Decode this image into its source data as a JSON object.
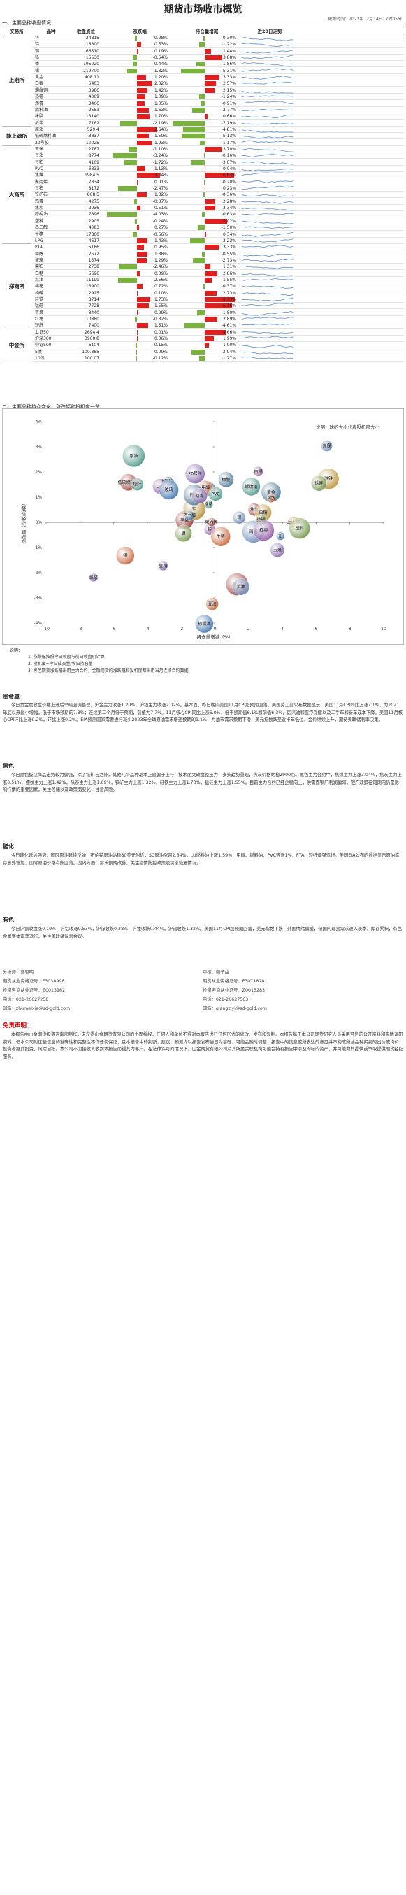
{
  "header": {
    "title": "期货市场收市概览",
    "update": "更新时间：2022年12月14日17时05分"
  },
  "section1": "一、主要品种收盘情况",
  "table_head": {
    "exchange": "交易所",
    "name": "品种",
    "price": "收盘点位",
    "pct": "涨跌幅",
    "pos": "持仓量增减",
    "trend": "近20日走势"
  },
  "colors": {
    "up": "#e0201f",
    "down": "#7ab23e"
  },
  "groups": [
    {
      "name": "上期所",
      "rows": [
        {
          "name": "锌",
          "price": "24815",
          "pct": -0.28,
          "pct_t": "-0.28%",
          "pos": -0.3,
          "pos_t": "-0.30%"
        },
        {
          "name": "铝",
          "price": "18800",
          "pct": 0.53,
          "pct_t": "0.53%",
          "pos": -1.22,
          "pos_t": "-1.22%"
        },
        {
          "name": "铜",
          "price": "66510",
          "pct": 0.19,
          "pct_t": "0.19%",
          "pos": 1.44,
          "pos_t": "1.44%"
        },
        {
          "name": "铅",
          "price": "15530",
          "pct": -0.54,
          "pct_t": "-0.54%",
          "pos": 3.88,
          "pos_t": "3.88%"
        },
        {
          "name": "镍",
          "price": "195020",
          "pct": -0.44,
          "pct_t": "-0.44%",
          "pos": -1.86,
          "pos_t": "-1.86%"
        },
        {
          "name": "锡",
          "price": "219700",
          "pct": -1.32,
          "pct_t": "-1.32%",
          "pos": -5.31,
          "pos_t": "-5.31%"
        },
        {
          "name": "黄金",
          "price": "408.11",
          "pct": 1.2,
          "pct_t": "1.20%",
          "pos": 3.33,
          "pos_t": "3.33%"
        },
        {
          "name": "白银",
          "price": "5403",
          "pct": 2.02,
          "pct_t": "2.02%",
          "pos": 2.57,
          "pos_t": "2.57%"
        },
        {
          "name": "螺纹钢",
          "price": "3986",
          "pct": 1.42,
          "pct_t": "1.42%",
          "pos": 2.15,
          "pos_t": "2.15%"
        },
        {
          "name": "热卷",
          "price": "4069",
          "pct": 1.09,
          "pct_t": "1.09%",
          "pos": -1.24,
          "pos_t": "-1.24%"
        },
        {
          "name": "沥青",
          "price": "3466",
          "pct": 1.05,
          "pct_t": "1.05%",
          "pos": -0.91,
          "pos_t": "-0.91%"
        },
        {
          "name": "燃料油",
          "price": "2553",
          "pct": 1.63,
          "pct_t": "1.63%",
          "pos": -2.77,
          "pos_t": "-2.77%"
        },
        {
          "name": "橡胶",
          "price": "13140",
          "pct": 1.7,
          "pct_t": "1.70%",
          "pos": 0.66,
          "pos_t": "0.66%"
        },
        {
          "name": "纸浆",
          "price": "7162",
          "pct": -2.19,
          "pct_t": "-2.19%",
          "pos": -7.19,
          "pos_t": "-7.19%"
        }
      ]
    },
    {
      "name": "能上源所",
      "rows": [
        {
          "name": "原油",
          "price": "529.4",
          "pct": 2.64,
          "pct_t": "2.64%",
          "pos": -4.81,
          "pos_t": "-4.81%"
        },
        {
          "name": "低硫燃料油",
          "price": "3837",
          "pct": 1.59,
          "pct_t": "1.59%",
          "pos": -5.13,
          "pos_t": "-5.13%"
        },
        {
          "name": "20号胶",
          "price": "10025",
          "pct": 1.93,
          "pct_t": "1.93%",
          "pos": -1.17,
          "pos_t": "-1.17%"
        }
      ]
    },
    {
      "name": "大商所",
      "rows": [
        {
          "name": "玉米",
          "price": "2787",
          "pct": -1.1,
          "pct_t": "-1.10%",
          "pos": 3.7,
          "pos_t": "3.70%"
        },
        {
          "name": "豆油",
          "price": "8774",
          "pct": -3.24,
          "pct_t": "-3.24%",
          "pos": -0.16,
          "pos_t": "-0.16%"
        },
        {
          "name": "豆粕",
          "price": "4109",
          "pct": -1.72,
          "pct_t": "-1.72%",
          "pos": -3.07,
          "pos_t": "-3.07%"
        },
        {
          "name": "PVC",
          "price": "6333",
          "pct": 1.13,
          "pct_t": "1.13%",
          "pos": 0.04,
          "pos_t": "0.04%"
        },
        {
          "name": "焦煤",
          "price": "1984.5",
          "pct": 3.04,
          "pct_t": "3.04%",
          "pos": 6.63,
          "pos_t": "6.63%"
        },
        {
          "name": "聚丙烯",
          "price": "7834",
          "pct": 0.01,
          "pct_t": "0.01%",
          "pos": -0.2,
          "pos_t": "-0.20%"
        },
        {
          "name": "豆粕",
          "price": "8172",
          "pct": -2.47,
          "pct_t": "-2.47%",
          "pos": 0.23,
          "pos_t": "0.23%"
        },
        {
          "name": "铁矿石",
          "price": "808.5",
          "pct": 1.32,
          "pct_t": "1.32%",
          "pos": -0.36,
          "pos_t": "-0.36%"
        },
        {
          "name": "鸡蛋",
          "price": "4275",
          "pct": -0.37,
          "pct_t": "-0.37%",
          "pos": 2.28,
          "pos_t": "2.28%"
        },
        {
          "name": "焦炭",
          "price": "2936",
          "pct": 0.51,
          "pct_t": "0.51%",
          "pos": 2.34,
          "pos_t": "2.34%"
        },
        {
          "name": "棕榈油",
          "price": "7896",
          "pct": -4.03,
          "pct_t": "-4.03%",
          "pos": -0.63,
          "pos_t": "-0.63%"
        },
        {
          "name": "塑料",
          "price": "2905",
          "pct": -0.24,
          "pct_t": "-0.24%",
          "pos": 5.02,
          "pos_t": "5.02%"
        },
        {
          "name": "乙二醇",
          "price": "4083",
          "pct": 0.27,
          "pct_t": "0.27%",
          "pos": -1.5,
          "pos_t": "-1.50%"
        },
        {
          "name": "生猪",
          "price": "17860",
          "pct": -0.56,
          "pct_t": "-0.56%",
          "pos": 0.34,
          "pos_t": "0.34%"
        },
        {
          "name": "LPG",
          "price": "4617",
          "pct": 1.43,
          "pct_t": "1.43%",
          "pos": -3.23,
          "pos_t": "-3.23%"
        }
      ]
    },
    {
      "name": "郑商所",
      "rows": [
        {
          "name": "PTA",
          "price": "5186",
          "pct": 0.95,
          "pct_t": "0.95%",
          "pos": 3.33,
          "pos_t": "3.33%"
        },
        {
          "name": "甲醇",
          "price": "2572",
          "pct": 1.38,
          "pct_t": "1.38%",
          "pos": -0.55,
          "pos_t": "-0.55%"
        },
        {
          "name": "玻璃",
          "price": "1574",
          "pct": 1.29,
          "pct_t": "1.29%",
          "pos": -2.73,
          "pos_t": "-2.73%"
        },
        {
          "name": "菜粕",
          "price": "2738",
          "pct": -2.46,
          "pct_t": "-2.46%",
          "pos": 1.31,
          "pos_t": "1.31%"
        },
        {
          "name": "白糖",
          "price": "5696",
          "pct": 0.39,
          "pct_t": "0.39%",
          "pos": 2.86,
          "pos_t": "2.86%"
        },
        {
          "name": "菜油",
          "price": "11199",
          "pct": -2.56,
          "pct_t": "-2.56%",
          "pos": 1.55,
          "pos_t": "1.55%"
        },
        {
          "name": "棉花",
          "price": "13900",
          "pct": 0.72,
          "pct_t": "0.72%",
          "pos": -0.37,
          "pos_t": "-0.37%"
        },
        {
          "name": "纯碱",
          "price": "2925",
          "pct": 0.1,
          "pct_t": "0.10%",
          "pos": 2.73,
          "pos_t": "2.73%"
        },
        {
          "name": "硅铁",
          "price": "8714",
          "pct": 1.73,
          "pct_t": "1.73%",
          "pos": 6.73,
          "pos_t": "6.73%"
        },
        {
          "name": "锰硅",
          "price": "7728",
          "pct": 1.55,
          "pct_t": "1.55%",
          "pos": 6.16,
          "pos_t": "6.16%"
        },
        {
          "name": "苹果",
          "price": "8440",
          "pct": 0.09,
          "pct_t": "0.09%",
          "pos": -1.8,
          "pos_t": "-1.80%"
        },
        {
          "name": "红枣",
          "price": "10880",
          "pct": -0.32,
          "pct_t": "-0.32%",
          "pos": 2.89,
          "pos_t": "2.89%"
        },
        {
          "name": "短纤",
          "price": "7400",
          "pct": 1.51,
          "pct_t": "1.51%",
          "pos": -4.61,
          "pos_t": "-4.61%"
        }
      ]
    },
    {
      "name": "中金所",
      "rows": [
        {
          "name": "上证50",
          "price": "2694.4",
          "pct": 0.01,
          "pct_t": "0.01%",
          "pos": 4.66,
          "pos_t": "4.66%"
        },
        {
          "name": "沪深300",
          "price": "3960.8",
          "pct": 0.06,
          "pct_t": "0.06%",
          "pos": 1.99,
          "pos_t": "1.99%"
        },
        {
          "name": "中证500",
          "price": "6104",
          "pct": -0.15,
          "pct_t": "-0.15%",
          "pos": 1.0,
          "pos_t": "1.00%"
        },
        {
          "name": "5债",
          "price": "100.885",
          "pct": -0.09,
          "pct_t": "-0.09%",
          "pos": -2.94,
          "pos_t": "-2.94%"
        },
        {
          "name": "10债",
          "price": "100.07",
          "pct": -0.12,
          "pct_t": "-0.12%",
          "pos": -1.27,
          "pos_t": "-1.27%"
        }
      ]
    }
  ],
  "section2": "二、主要品种持仓变化、涨跌幅和投机度一览",
  "chart_data": {
    "type": "scatter",
    "legend_note": "说明：球的大小代表投机度大小",
    "xlabel": "持仓量增减（%）",
    "ylabel": "涨跌幅（今收/前收）",
    "xlim": [
      -10,
      10
    ],
    "ylim": [
      -4,
      4
    ],
    "points": [
      {
        "name": "纸浆",
        "x": -7.19,
        "y": -2.19
      },
      {
        "name": "棕榈油",
        "x": -0.63,
        "y": -4.03
      },
      {
        "name": "豆油",
        "x": -0.16,
        "y": -3.24
      },
      {
        "name": "原油",
        "x": -4.81,
        "y": 2.64
      },
      {
        "name": "低硫燃料油",
        "x": -5.13,
        "y": 1.59
      },
      {
        "name": "焦煤",
        "x": 6.63,
        "y": 3.04
      },
      {
        "name": "硅铁",
        "x": 6.73,
        "y": 1.73
      },
      {
        "name": "锰硅",
        "x": 6.16,
        "y": 1.55
      },
      {
        "name": "白银",
        "x": 2.57,
        "y": 2.02
      },
      {
        "name": "黄金",
        "x": 3.33,
        "y": 1.2
      },
      {
        "name": "玉米",
        "x": 3.7,
        "y": -1.1
      },
      {
        "name": "铅",
        "x": 3.88,
        "y": -0.54
      },
      {
        "name": "锡",
        "x": -5.31,
        "y": -1.32
      },
      {
        "name": "短纤",
        "x": -4.61,
        "y": 1.51
      },
      {
        "name": "菜粕",
        "x": 1.31,
        "y": -2.46
      },
      {
        "name": "菜油",
        "x": 1.55,
        "y": -2.56
      },
      {
        "name": "上证50",
        "x": 4.66,
        "y": 0.01
      },
      {
        "name": "塑料",
        "x": 5.02,
        "y": -0.24
      },
      {
        "name": "LPG",
        "x": -3.23,
        "y": 1.43
      },
      {
        "name": "燃料油",
        "x": -2.77,
        "y": 1.63
      },
      {
        "name": "20号胶",
        "x": -1.17,
        "y": 1.93
      },
      {
        "name": "铁矿石",
        "x": -0.36,
        "y": 1.32
      },
      {
        "name": "PTA",
        "x": 3.33,
        "y": 0.95
      },
      {
        "name": "螺纹钢",
        "x": 2.15,
        "y": 1.42
      },
      {
        "name": "焦炭",
        "x": 2.34,
        "y": 0.51
      },
      {
        "name": "鸡蛋",
        "x": 2.28,
        "y": -0.37
      },
      {
        "name": "白糖",
        "x": 2.86,
        "y": 0.39
      },
      {
        "name": "纯碱",
        "x": 2.73,
        "y": 0.1
      },
      {
        "name": "红枣",
        "x": 2.89,
        "y": -0.32
      },
      {
        "name": "橡胶",
        "x": 0.66,
        "y": 1.7
      },
      {
        "name": "豆粕",
        "x": -3.07,
        "y": -1.72
      },
      {
        "name": "玻璃",
        "x": -2.73,
        "y": 1.29
      },
      {
        "name": "甲醇",
        "x": -0.55,
        "y": 1.38
      },
      {
        "name": "棉花",
        "x": -0.37,
        "y": 0.72
      },
      {
        "name": "苹果",
        "x": -1.8,
        "y": 0.09
      },
      {
        "name": "铜",
        "x": 1.44,
        "y": 0.19
      },
      {
        "name": "铝",
        "x": -1.22,
        "y": 0.53
      },
      {
        "name": "镍",
        "x": -1.86,
        "y": -0.44
      },
      {
        "name": "锌",
        "x": -0.3,
        "y": -0.28
      },
      {
        "name": "热卷",
        "x": -1.24,
        "y": 1.09
      },
      {
        "name": "沥青",
        "x": -0.91,
        "y": 1.05
      },
      {
        "name": "乙二醇",
        "x": -1.5,
        "y": 0.27
      },
      {
        "name": "生猪",
        "x": 0.34,
        "y": -0.56
      },
      {
        "name": "PVC",
        "x": 0.04,
        "y": 1.13
      },
      {
        "name": "聚丙烯",
        "x": -0.2,
        "y": 0.01
      }
    ]
  },
  "notes": [
    "说明：",
    "1. 涨跌幅按照今日收盘与前日收盘价计算",
    "2. 投机度=今日成交量/今日持仓量",
    "3. 黑色期货涨跌幅采用主力合约，金融期货的涨跌幅和投机度都采用当月连续合约数据"
  ],
  "sections": [
    {
      "head": "贵金属",
      "text": "今日贵金属收盘价继上涨后早暗回调整理，沪金主力收涨1.20%，沪银主力收涨2.02%。基本面，昨日晚间美国11月CPI超预期回落，美国劳工部公布数据显示，美国11月CPI同比上涨7.1%，为2021年底以来最小增幅，低于市场预期的7.3%；连续第二个月低于预期，前值为7.7%。11月核心CPI同比上涨6.0%，低于预期值6.1%和前值6.3%，因汽油和医疗保健以及二手车和新车成本下降。美国11月核心CPI环比上涨0.2%，环比上涨0.2%。EIA预测国家需要进行减少2023年全球原油需求增速预期的1.1%，为油市需求预期下滑，美元指数跌至近半年低位，金价继续上升，期待美联储利率决策。"
    },
    {
      "head": "黑色",
      "text": "今日黑色板块商品走势较为偏强，除了铁矿石之外，其他几个品种基本上是偏于上行，技术面突破盘整压力，多头趋势重现，焦炭价格站稳2900点。黑色主力合约中，焦煤主力上涨3.04%，焦炭主力上涨0.51%，螺纹主力上涨1.42%，热卷主力上涨1.09%，铁矿主力上涨1.32%，硅铁主力上涨1.73%，锰硅主力上涨1.55%。目前主力合约已经企稳向上，供需面钢厂利润偏薄，限产政策在短期内仍是影响行情的重要因素，关注冬储以及政策面变化，注意风险。"
    },
    {
      "head": "能化",
      "text": "今日能化延续强势，国际原油延续反弹，布伦特原油站稳80美元附近；SC原油涨超2.64%，LU燃料油上涨1.59%，甲醇、燃料油、PVC等涨1%，PTA、短纤偏强运行。美国EIA公布的数据显示原油库存意外增加，国际原油价格有所回落。国内方面，需求预期改善，关注疫情防控政策及需求恢复情况。"
    },
    {
      "head": "有色",
      "text": "今日沪铜收盘涨0.19%，沪铝收涨0.53%，沪锌收跌0.28%，沪镍收跌0.44%，沪锡收跌1.32%。美国11月CPI超预期回落，美元指数下跌，外围情绪偏暖，但国内现货需求进入淡季，库存累积，有色金属整体震荡运行，关注美联储议息会议。"
    }
  ],
  "signature": {
    "author_label": "分析师：",
    "author": "曹有明",
    "author_cert_label": "期货从业资格证号：",
    "author_cert": "F3038998",
    "author_advice_label": "投资咨询从业证号：",
    "author_advice": "Z0013162",
    "author_phone_label": "电话：",
    "author_phone": "021-20627258",
    "author_mail_label": "邮箱：",
    "author_mail": "zhumeixia@sd-gold.com",
    "reviewer_label": "审核：",
    "reviewer": "强子益",
    "reviewer_cert_label": "期货从业资格证号：",
    "reviewer_cert": "F3071828",
    "reviewer_advice_label": "投资咨询从业证号：",
    "reviewer_advice": "Z0015283",
    "reviewer_phone_label": "电话：",
    "reviewer_phone": "021-20627563",
    "reviewer_mail_label": "邮箱：",
    "reviewer_mail": "qiangziyi@sd-gold.com"
  },
  "disclaimer": {
    "head": "免责声明：",
    "text": "本报告由山金期货投资咨询部制作，未获得山金期货有限公司的书面授权，任何人和单位不得对本报告进行任何形式的修改、发布和复制。本报告基于本公司期货研究人员采用可信的公开资料和实地调研资料，但本公司对这些信息的准确性和完整性不作任何保证，且本报告中的判断、建议、预测均以报告发布当日为基础，可能会随时调整，报告中的信息或所表达的意见并不构成所述品种买卖的出价或询价，投资者据此投资，风险自担。本公司不因接收人收到本报告而视其为客户。在法律许可的情况下，山金期货有限公司及其所属关联机构可能会持有报告中涉及的标的资产，并可能为其提供或争取提供期货经纪服务。"
  }
}
